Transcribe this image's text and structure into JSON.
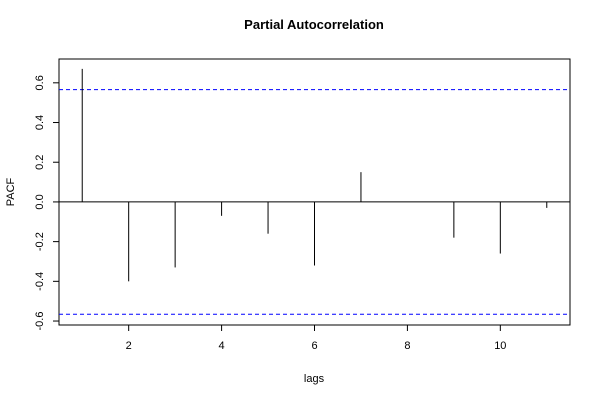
{
  "chart_data": {
    "type": "bar",
    "title": "Partial Autocorrelation",
    "xlabel": "lags",
    "ylabel": "PACF",
    "x": [
      1,
      2,
      3,
      4,
      5,
      6,
      7,
      8,
      9,
      10,
      11
    ],
    "values": [
      0.67,
      -0.4,
      -0.33,
      -0.07,
      -0.16,
      -0.32,
      0.15,
      0.0,
      -0.18,
      -0.26,
      -0.03
    ],
    "xlim": [
      0.5,
      11.5
    ],
    "ylim": [
      -0.62,
      0.72
    ],
    "x_ticks": [
      2,
      4,
      6,
      8,
      10
    ],
    "y_ticks": [
      -0.6,
      -0.4,
      -0.2,
      0.0,
      0.2,
      0.4,
      0.6
    ],
    "x_tick_labels": [
      "2",
      "4",
      "6",
      "8",
      "10"
    ],
    "y_tick_labels": [
      "-0.6",
      "-0.4",
      "-0.2",
      "0.0",
      "0.2",
      "0.4",
      "0.6"
    ],
    "confidence_bound": 0.566,
    "zero_line": true,
    "grid": false,
    "colors": {
      "bars": "#000000",
      "bounds": "#0000ff",
      "zero": "#000000"
    }
  }
}
